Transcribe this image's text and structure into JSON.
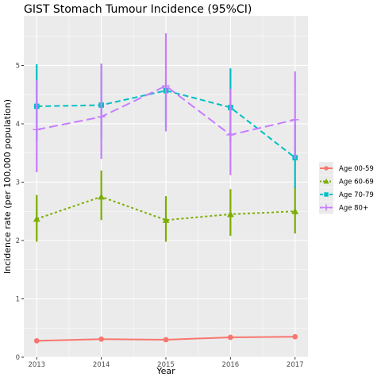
{
  "chart_data": {
    "type": "line",
    "title": "GIST Stomach Tumour Incidence (95%CI)",
    "xlabel": "Year",
    "ylabel": "Incidence rate (per 100,000 population)",
    "x": [
      2013,
      2014,
      2015,
      2016,
      2017
    ],
    "x_tick_labels": [
      "2013",
      "2014",
      "2015",
      "2016",
      "2017"
    ],
    "y_ticks": [
      0,
      1,
      2,
      3,
      4,
      5
    ],
    "y_tick_labels": [
      "0",
      "1",
      "2",
      "3",
      "4",
      "5"
    ],
    "xlim": [
      2012.8,
      2017.2
    ],
    "ylim": [
      0,
      5.85
    ],
    "grid": true,
    "legend_position": "right",
    "series": [
      {
        "name": "Age 00-59",
        "color": "#F8766D",
        "marker": "circle",
        "linestyle": "solid",
        "values": [
          0.28,
          0.31,
          0.3,
          0.34,
          0.35
        ],
        "lower": [
          0.25,
          0.28,
          0.27,
          0.31,
          0.32
        ],
        "upper": [
          0.31,
          0.34,
          0.33,
          0.37,
          0.38
        ]
      },
      {
        "name": "Age 60-69",
        "color": "#7CAE00",
        "marker": "triangle",
        "linestyle": "dotted",
        "values": [
          2.37,
          2.75,
          2.35,
          2.45,
          2.5
        ],
        "lower": [
          1.98,
          2.35,
          1.98,
          2.08,
          2.12
        ],
        "upper": [
          2.78,
          3.2,
          2.76,
          2.88,
          2.93
        ]
      },
      {
        "name": "Age 70-79",
        "color": "#00BFC4",
        "marker": "square",
        "linestyle": "dashed",
        "values": [
          4.3,
          4.32,
          4.57,
          4.28,
          3.42
        ],
        "lower": [
          3.7,
          3.75,
          3.95,
          3.68,
          2.9
        ],
        "upper": [
          5.02,
          5.03,
          4.67,
          4.95,
          4.0
        ]
      },
      {
        "name": "Age 80+",
        "color": "#C77CFF",
        "marker": "cross",
        "linestyle": "longdash",
        "values": [
          3.9,
          4.12,
          4.65,
          3.81,
          4.07
        ],
        "lower": [
          3.17,
          3.4,
          3.87,
          3.12,
          3.4
        ],
        "upper": [
          4.75,
          5.03,
          5.55,
          4.6,
          4.9
        ]
      }
    ]
  }
}
